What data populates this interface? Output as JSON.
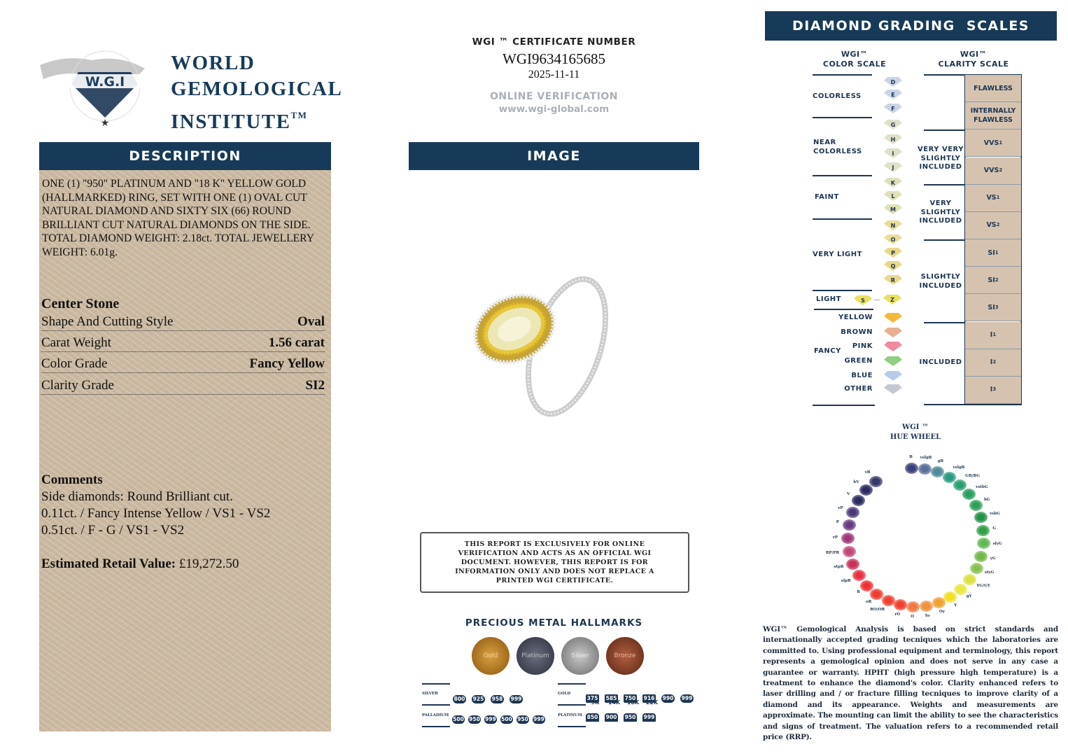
{
  "logo": {
    "emblem_text": "WORLD GEMOLOGICAL INSTITUTE",
    "emblem_initials": "W.G.I",
    "line1": "WORLD",
    "line2": "GEMOLOGICAL",
    "line3": "INSTITUTE",
    "tm": "TM"
  },
  "certificate": {
    "label": "WGI ™ CERTIFICATE NUMBER",
    "number": "WGI9634165685",
    "date": "2025-11-11",
    "verification_label": "ONLINE VERIFICATION",
    "verification_url": "www.wgi-global.com"
  },
  "description": {
    "header": "DESCRIPTION",
    "text": "ONE (1) \"950\" PLATINUM AND \"18 K\" YELLOW GOLD (HALLMARKED) RING, SET WITH ONE (1) OVAL CUT NATURAL DIAMOND AND SIXTY SIX (66) ROUND BRILLIANT CUT NATURAL DIAMONDS ON THE SIDE. TOTAL DIAMOND WEIGHT: 2.18ct. TOTAL JEWELLERY WEIGHT: 6.01g.",
    "center_stone_title": "Center Stone",
    "rows": [
      {
        "label": "Shape And Cutting Style",
        "value": "Oval"
      },
      {
        "label": "Carat Weight",
        "value": "1.56 carat"
      },
      {
        "label": "Color Grade",
        "value": "Fancy Yellow"
      },
      {
        "label": "Clarity Grade",
        "value": "SI2"
      }
    ],
    "comments_title": "Comments",
    "comments": [
      "Side diamonds: Round Brilliant cut.",
      "0.11ct. / Fancy Intense Yellow / VS1 - VS2",
      "0.51ct. / F - G / VS1 - VS2"
    ],
    "retail_label": "Estimated Retail Value:",
    "retail_value": "£19,272.50"
  },
  "image": {
    "header": "IMAGE"
  },
  "disclaimer": "THIS REPORT IS EXCLUSIVELY FOR ONLINE VERIFICATION AND ACTS AS AN OFFICIAL WGI DOCUMENT. HOWEVER, THIS REPORT IS FOR INFORMATION ONLY AND DOES NOT REPLACE A PRINTED WGI CERTIFICATE.",
  "hallmarks": {
    "title": "PRECIOUS METAL HALLMARKS",
    "medals": [
      "Gold",
      "Platinum",
      "Silver",
      "Bronze"
    ],
    "silver": {
      "label": "SILVER",
      "marks": [
        "800",
        "925",
        "958",
        "999"
      ]
    },
    "palladium": {
      "label": "PALLADIUM",
      "marks": [
        "500",
        "950",
        "999",
        "500",
        "950",
        "999"
      ]
    },
    "gold": {
      "label": "GOLD",
      "marks": [
        "375",
        "585",
        "750",
        "916",
        "990",
        "999"
      ],
      "karats": [
        "9K",
        "14K",
        "18K",
        "22K"
      ]
    },
    "platinum": {
      "label": "PLATINUM",
      "marks": [
        "850",
        "900",
        "950",
        "999"
      ]
    }
  },
  "grading": {
    "header": "DIAMOND GRADING  SCALES",
    "color_scale": {
      "title1": "WGI™",
      "title2": "COLOR SCALE",
      "groups": [
        "COLORLESS",
        "NEAR COLORLESS",
        "FAINT",
        "VERY LIGHT",
        "LIGHT",
        "FANCY"
      ],
      "grades": [
        "D",
        "E",
        "F",
        "G",
        "H",
        "I",
        "J",
        "K",
        "L",
        "M",
        "N",
        "O",
        "P",
        "Q",
        "R"
      ],
      "light_grades": [
        "S",
        "Z"
      ],
      "fancy": [
        "YELLOW",
        "BROWN",
        "PINK",
        "GREEN",
        "BLUE",
        "OTHER"
      ],
      "fancy_colors": [
        "#f2b93a",
        "#e8b08f",
        "#f08aa0",
        "#8fcf84",
        "#b8cbe6",
        "#c5c8d2"
      ]
    },
    "clarity_scale": {
      "title1": "WGI™",
      "title2": "CLARITY SCALE",
      "groups": [
        "VERY VERY SLIGHTLY INCLUDED",
        "VERY SLIGHTLY INCLUDED",
        "SLIGHTLY INCLUDED",
        "INCLUDED"
      ],
      "grades": [
        {
          "main": "FLAWLESS",
          "sub": ""
        },
        {
          "main": "INTERNALLY FLAWLESS",
          "sub": ""
        },
        {
          "main": "VVS",
          "sub": "1"
        },
        {
          "main": "VVS",
          "sub": "2"
        },
        {
          "main": "VS",
          "sub": "1"
        },
        {
          "main": "VS",
          "sub": "2"
        },
        {
          "main": "SI",
          "sub": "1"
        },
        {
          "main": "SI",
          "sub": "2"
        },
        {
          "main": "SI",
          "sub": "3"
        },
        {
          "main": "I",
          "sub": "1"
        },
        {
          "main": "I",
          "sub": "2"
        },
        {
          "main": "I",
          "sub": "3"
        }
      ]
    }
  },
  "hue_wheel": {
    "title1": "WGI ™",
    "title2": "HUE WHEEL",
    "hues": [
      {
        "l": "B",
        "c": "#3b3f78"
      },
      {
        "l": "vslgB",
        "c": "#5a6f98"
      },
      {
        "l": "gB",
        "c": "#4e8a98"
      },
      {
        "l": "vslgB",
        "c": "#2a9a80"
      },
      {
        "l": "GB/BG",
        "c": "#2aa070"
      },
      {
        "l": "vstbG",
        "c": "#28a060"
      },
      {
        "l": "bG",
        "c": "#30a058"
      },
      {
        "l": "vsbG",
        "c": "#249048"
      },
      {
        "l": "G",
        "c": "#30a048"
      },
      {
        "l": "slyG",
        "c": "#60b850"
      },
      {
        "l": "yG",
        "c": "#70b848"
      },
      {
        "l": "styG",
        "c": "#88c050"
      },
      {
        "l": "YG/GY",
        "c": "#dce040"
      },
      {
        "l": "gY",
        "c": "#e8e840"
      },
      {
        "l": "Y",
        "c": "#f0e020"
      },
      {
        "l": "Oy",
        "c": "#f0a030"
      },
      {
        "l": "Yo",
        "c": "#f09040"
      },
      {
        "l": "O",
        "c": "#f07840"
      },
      {
        "l": "rO",
        "c": "#f04030"
      },
      {
        "l": "RO/OR",
        "c": "#f04030"
      },
      {
        "l": "oR",
        "c": "#f03c30"
      },
      {
        "l": "R",
        "c": "#f03030"
      },
      {
        "l": "slpR",
        "c": "#e83040"
      },
      {
        "l": "stpR",
        "c": "#c83058"
      },
      {
        "l": "RP/PR",
        "c": "#c04878"
      },
      {
        "l": "rP",
        "c": "#a03878"
      },
      {
        "l": "P",
        "c": "#6a3a80"
      },
      {
        "l": "vP",
        "c": "#4a3878"
      },
      {
        "l": "V",
        "c": "#2a2a60"
      },
      {
        "l": "bV",
        "c": "#2a2a60"
      },
      {
        "l": "vB",
        "c": "#353868"
      }
    ]
  },
  "footnote": "WGI™ Gemological Analysis is based on strict standards and internationally accepted grading tecniques which the laboratories are committed to. Using professional equipment and terminology, this report represents a gemological opinion and does not serve in any case a guarantee or warranty. HPHT (high pressure high temperature) is a treatment to enhance the diamond's color. Clarity enhanced refers to laser drilling and / or fracture filling tecniques to improve clarity of a diamond and its appearance. Weights and measurements are approximate. The mounting can limit the ability to see the characteristics and signs of treatment. The valuation refers to a recommended retail price (RRP).",
  "colors": {
    "navy": "#173a58",
    "beige": "#c9b79f"
  }
}
